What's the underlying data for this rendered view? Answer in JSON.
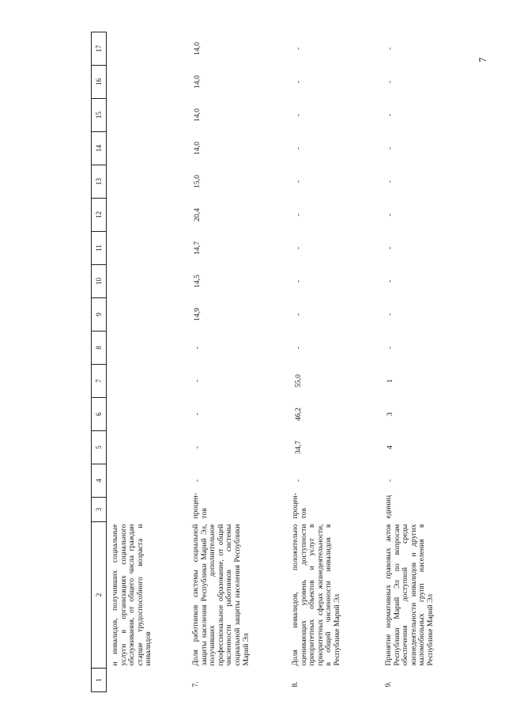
{
  "page_number": "7",
  "table": {
    "headers": [
      "1",
      "2",
      "3",
      "4",
      "5",
      "6",
      "7",
      "8",
      "9",
      "10",
      "11",
      "12",
      "13",
      "14",
      "15",
      "16",
      "17"
    ],
    "rows": [
      {
        "num": "",
        "name": "и инвалидов, получивших социальные услуги в организациях социального обслуживания, от общего числа граждан старше трудоспособного возраста и инвалидов",
        "unit": "",
        "values": [
          "",
          "",
          "",
          "",
          "",
          "",
          "",
          "",
          "",
          "",
          "",
          "",
          "",
          ""
        ]
      },
      {
        "num": "7.",
        "name": "Доля работников системы социальной защиты населения Республики Марий Эл, получивших дополнительное профессиональное образование, от общей численности работников системы социальной защиты населения Республики Марий Эл",
        "unit": "процен-тов",
        "values": [
          "-",
          "-",
          "-",
          "-",
          "-",
          "14,9",
          "14,5",
          "14,7",
          "20,4",
          "15,0",
          "14,0",
          "14,0",
          "14,0",
          "14,0"
        ]
      },
      {
        "num": "8.",
        "name": "Доля инвалидов, положительно оценивающих уровень доступности приоритетных объектов и услуг в приоритетных сферах жизнедеятельности, в общей численности инвалидов в Республике Марий Эл",
        "unit": "процен-тов",
        "values": [
          "-",
          "34,7",
          "46,2",
          "55,0",
          "-",
          "-",
          "-",
          "-",
          "-",
          "-",
          "-",
          "-",
          "-",
          "-"
        ]
      },
      {
        "num": "9.",
        "name": "Принятие нормативных правовых актов Республики Марий Эл по вопросам обеспечения доступной среды жизнедеятельности инвалидов и других маломобильных групп населения в Республике Марий Эл",
        "unit": "единиц",
        "values": [
          "-",
          "4",
          "3",
          "1",
          "-",
          "-",
          "-",
          "-",
          "-",
          "-",
          "-",
          "-",
          "-",
          "-"
        ]
      }
    ]
  }
}
